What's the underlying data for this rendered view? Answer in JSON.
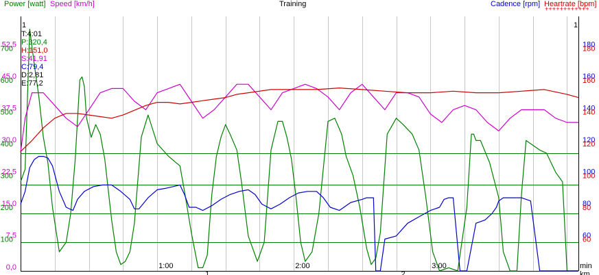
{
  "chart_data": {
    "type": "line",
    "title": "Training",
    "x_unit_top": "min",
    "x_unit_bottom": "km",
    "x_range_seconds": [
      0,
      245
    ],
    "x_minute_ticks": [
      "1:00",
      "2:00",
      "3:00"
    ],
    "x_km_ticks": [
      "1",
      "2"
    ],
    "grid": true,
    "axes": {
      "power": {
        "label": "Power [watt]",
        "color": "#008000",
        "range": [
          0,
          800
        ],
        "ticks": [
          "100",
          "200",
          "300",
          "400",
          "500",
          "600",
          "700"
        ]
      },
      "speed": {
        "label": "Speed [km/h]",
        "color": "#cc00cc",
        "range": [
          0,
          60
        ],
        "ticks": [
          "0,0",
          "7,5",
          "15,0",
          "22,5",
          "30,0",
          "37,5",
          "45,0",
          "52,5"
        ]
      },
      "cadence": {
        "label": "Cadence [rpm]",
        "color": "#0000cc",
        "range": [
          40,
          200
        ],
        "ticks": [
          "60",
          "80",
          "100",
          "120",
          "140",
          "160",
          "180"
        ]
      },
      "heartrate": {
        "label": "Heartrate [bpm]",
        "color": "#cc0000",
        "range": [
          40,
          200
        ],
        "ticks": [
          "60",
          "80",
          "100",
          "120",
          "140",
          "160",
          "180"
        ]
      }
    },
    "cursor_label_left": "1",
    "cursor_label_right": "1",
    "readout": [
      {
        "text": "T:4:01",
        "color": "#000000"
      },
      {
        "text": "P:320,4",
        "color": "#008000"
      },
      {
        "text": "H:151,0",
        "color": "#cc0000"
      },
      {
        "text": "S:41,91",
        "color": "#cc00cc"
      },
      {
        "text": "C:79,4",
        "color": "#0000cc"
      },
      {
        "text": "D:2,81",
        "color": "#000000"
      },
      {
        "text": "E:77,2",
        "color": "#000000"
      }
    ],
    "power_zone_lines": [
      90,
      180,
      270,
      370
    ],
    "series": [
      {
        "name": "Power [watt]",
        "axis": "power",
        "x": [
          0,
          2,
          4,
          6,
          8,
          10,
          12,
          14,
          17,
          20,
          22,
          24,
          26,
          27,
          28,
          29,
          31,
          33,
          35,
          37,
          40,
          42,
          44,
          46,
          48,
          50,
          53,
          56,
          60,
          65,
          70,
          72,
          75,
          78,
          80,
          82,
          84,
          86,
          88,
          90,
          92,
          95,
          97,
          100,
          104,
          107,
          110,
          113,
          115,
          117,
          119,
          121,
          123,
          125,
          128,
          131,
          135,
          138,
          141,
          143,
          146,
          149,
          152,
          154,
          156,
          158,
          161,
          165,
          168,
          172,
          175,
          178,
          181,
          184,
          188,
          192,
          196,
          198,
          199,
          200,
          202,
          206,
          210,
          212,
          215,
          218,
          220,
          222,
          224,
          228,
          231,
          235,
          238,
          240,
          245
        ],
        "values": [
          280,
          320,
          760,
          650,
          550,
          420,
          340,
          200,
          60,
          90,
          180,
          350,
          600,
          610,
          580,
          480,
          420,
          460,
          430,
          350,
          160,
          60,
          20,
          30,
          60,
          150,
          420,
          490,
          400,
          360,
          330,
          250,
          120,
          10,
          10,
          50,
          240,
          360,
          420,
          460,
          430,
          380,
          280,
          110,
          30,
          90,
          380,
          470,
          470,
          420,
          350,
          230,
          90,
          30,
          60,
          180,
          470,
          480,
          430,
          360,
          300,
          200,
          70,
          20,
          40,
          120,
          430,
          480,
          460,
          430,
          380,
          230,
          60,
          0,
          10,
          0,
          200,
          430,
          430,
          410,
          410,
          340,
          230,
          60,
          0,
          0,
          240,
          410,
          400,
          380,
          370,
          310,
          280,
          0,
          0
        ]
      },
      {
        "name": "Speed [km/h]",
        "axis": "speed",
        "x": [
          0,
          2,
          5,
          10,
          15,
          20,
          25,
          30,
          35,
          40,
          45,
          50,
          55,
          60,
          65,
          70,
          75,
          80,
          85,
          90,
          95,
          100,
          105,
          110,
          115,
          120,
          125,
          130,
          135,
          140,
          145,
          150,
          155,
          160,
          165,
          170,
          175,
          180,
          185,
          190,
          195,
          200,
          205,
          210,
          215,
          220,
          225,
          230,
          235,
          240,
          245
        ],
        "values": [
          28,
          36,
          42,
          42,
          39,
          36,
          34,
          38,
          42,
          43,
          43,
          40,
          38,
          42,
          43,
          44,
          40,
          36,
          38,
          41,
          44,
          44,
          41,
          38,
          42,
          43,
          44,
          43,
          41,
          38,
          42,
          44,
          41,
          38,
          42,
          42,
          41,
          37,
          35,
          38,
          39,
          38,
          35,
          33,
          36,
          38,
          38,
          38,
          36,
          35,
          35
        ]
      },
      {
        "name": "Cadence [rpm]",
        "axis": "cadence",
        "x": [
          0,
          2,
          4,
          6,
          8,
          10,
          12,
          14,
          17,
          20,
          23,
          25,
          28,
          32,
          36,
          40,
          44,
          48,
          50,
          52,
          56,
          60,
          64,
          67,
          70,
          72,
          74,
          77,
          80,
          84,
          88,
          92,
          96,
          100,
          103,
          106,
          110,
          114,
          118,
          122,
          126,
          130,
          133,
          136,
          140,
          145,
          150,
          152,
          153,
          155,
          156,
          158,
          160,
          165,
          170,
          175,
          180,
          184,
          186,
          188,
          190,
          193,
          196,
          200,
          204,
          207,
          209,
          210,
          212,
          215,
          220,
          224,
          228,
          232,
          235,
          236,
          238,
          240,
          245
        ],
        "values": [
          82,
          90,
          105,
          110,
          112,
          112,
          111,
          106,
          90,
          80,
          78,
          85,
          90,
          93,
          94,
          94,
          90,
          85,
          79,
          79,
          86,
          91,
          92,
          93,
          94,
          88,
          80,
          80,
          78,
          81,
          85,
          88,
          90,
          91,
          88,
          82,
          79,
          82,
          86,
          89,
          90,
          90,
          86,
          80,
          78,
          83,
          85,
          86,
          86,
          86,
          40,
          40,
          60,
          62,
          70,
          74,
          78,
          80,
          85,
          86,
          86,
          40,
          40,
          70,
          72,
          76,
          80,
          84,
          86,
          86,
          86,
          84,
          40,
          40,
          40,
          40,
          40,
          40,
          40
        ]
      },
      {
        "name": "Heartrate [bpm]",
        "axis": "heartrate",
        "x": [
          0,
          5,
          10,
          15,
          20,
          25,
          30,
          35,
          40,
          45,
          50,
          55,
          60,
          65,
          70,
          75,
          80,
          85,
          90,
          95,
          100,
          110,
          120,
          130,
          140,
          150,
          160,
          170,
          180,
          190,
          200,
          210,
          220,
          230,
          240,
          245
        ],
        "values": [
          115,
          122,
          130,
          136,
          139,
          139,
          138,
          137,
          136,
          138,
          141,
          144,
          146,
          146,
          145,
          146,
          147,
          148,
          149,
          151,
          152,
          154,
          154,
          154,
          155,
          154,
          153,
          152,
          152,
          153,
          152,
          152,
          153,
          154,
          151,
          149
        ]
      }
    ]
  }
}
